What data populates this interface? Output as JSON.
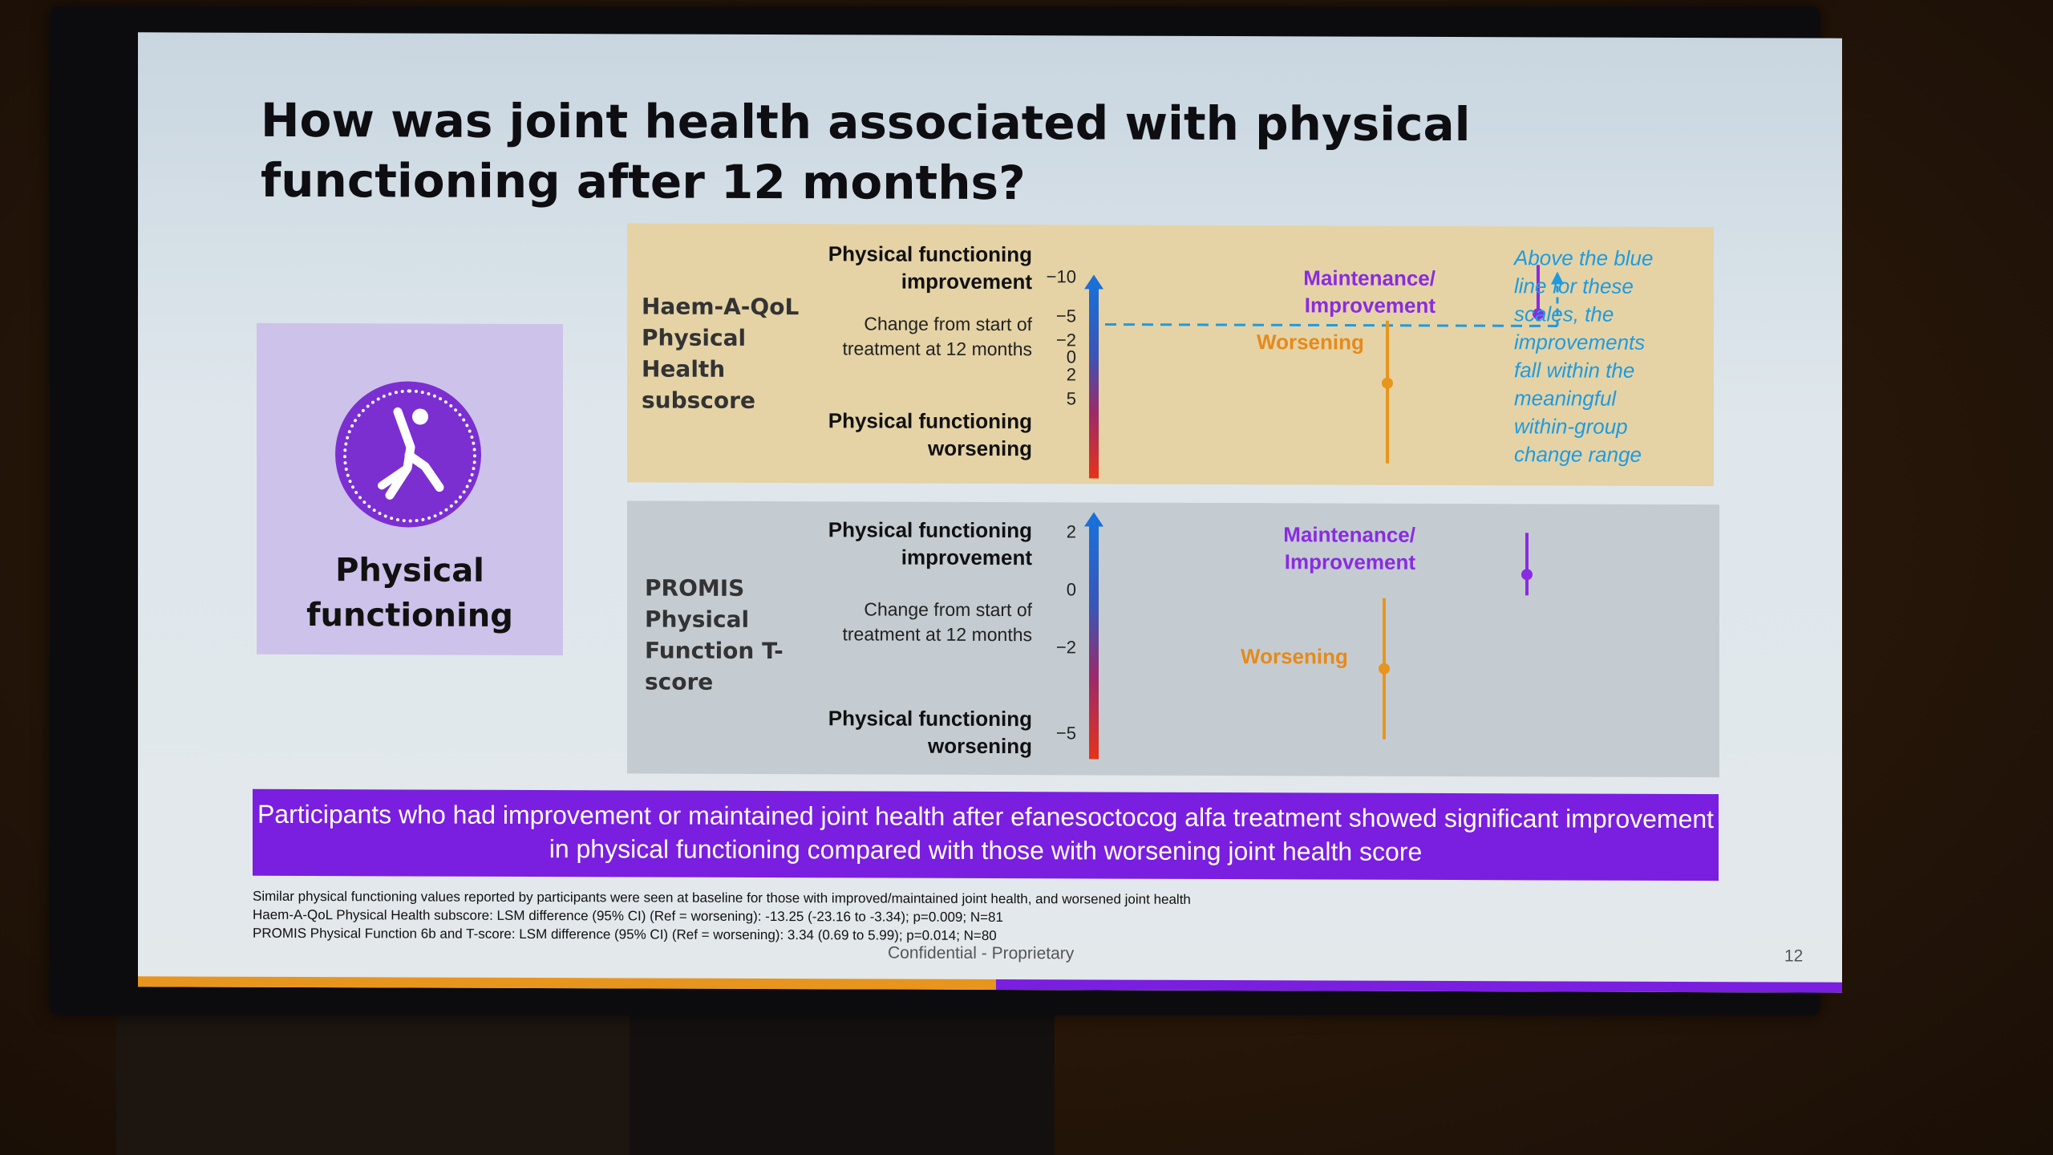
{
  "slide": {
    "title": "How was joint health associated with physical functioning after 12 months?",
    "card_label": "Physical functioning",
    "top_panel": {
      "scale_name": "Haem-A-QoL Physical Health subscore",
      "improvement": "Physical functioning improvement",
      "change": "Change from start of treatment at 12 months",
      "worsening": "Physical functioning worsening",
      "ticks": [
        "−10",
        "−5",
        "−2",
        "0",
        "2",
        "5"
      ],
      "maint_label": "Maintenance/ Improvement",
      "worse_label": "Worsening",
      "note": "Above the blue line for these scales, the improvements fall within the meaningful within-group change range"
    },
    "bottom_panel": {
      "scale_name": "PROMIS Physical Function T-score",
      "improvement": "Physical functioning improvement",
      "change": "Change from start of treatment at 12 months",
      "worsening": "Physical functioning worsening",
      "ticks": [
        "2",
        "0",
        "−2",
        "−5"
      ],
      "maint_label": "Maintenance/ Improvement",
      "worse_label": "Worsening"
    },
    "banner": "Participants who had improvement or maintained joint health after efanesoctocog alfa treatment showed significant improvement in physical functioning compared with those with worsening joint health score",
    "footnotes": [
      "Similar physical functioning values reported by participants were seen at baseline for those with improved/maintained joint health, and worsened joint health",
      "Haem-A-QoL Physical Health subscore: LSM difference (95% CI) (Ref = worsening): -13.25 (-23.16 to -3.34); p=0.009; N=81",
      "PROMIS Physical Function 6b and T-score: LSM difference (95% CI) (Ref = worsening): 3.34 (0.69 to 5.99); p=0.014; N=80"
    ],
    "confidential": "Confidential - Proprietary",
    "page_number": "12",
    "colors": {
      "purple": "#7a1ee0",
      "orange": "#e8951e",
      "blue": "#1a6fd8"
    }
  }
}
